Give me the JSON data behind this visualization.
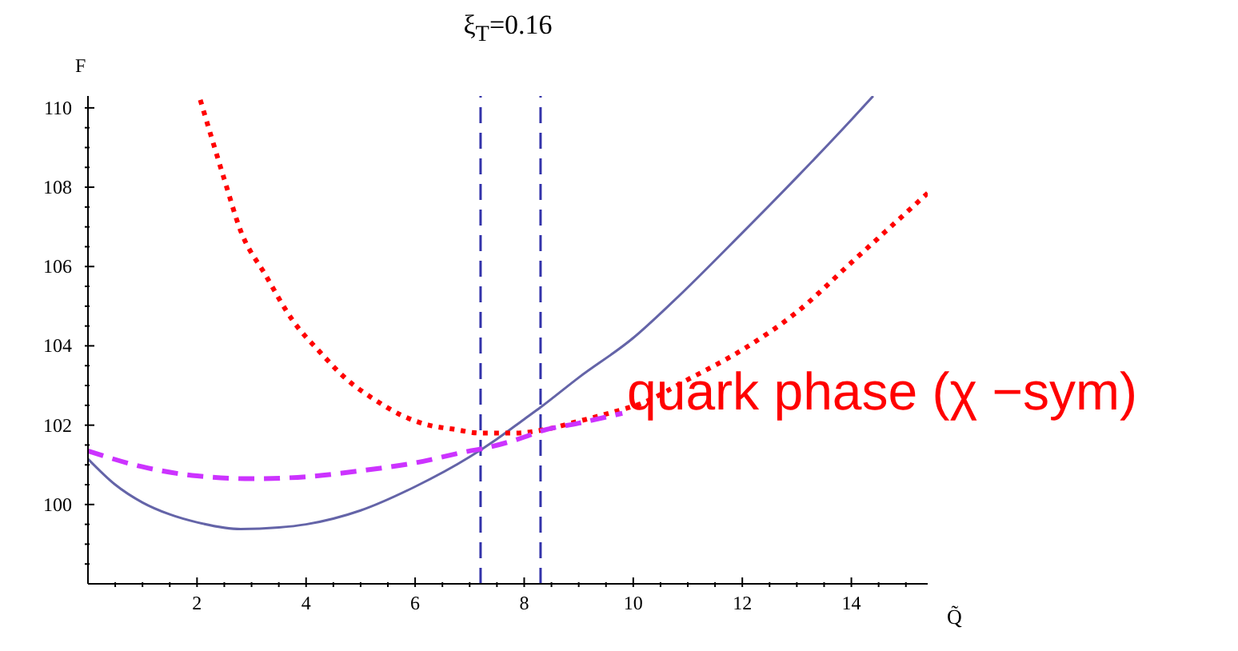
{
  "chart_data": {
    "type": "line",
    "title": "ξ$_{T}$=0.16",
    "xlabel": "Q̃",
    "ylabel": "F",
    "annotations": [
      "quark phase (χ −sym)"
    ],
    "series": [
      {
        "color": "#6464a8",
        "line_style": "solid",
        "x": [
          0,
          0.5,
          1,
          1.5,
          2,
          2.8,
          3.5,
          4,
          5,
          6,
          7,
          7.5,
          8,
          8.3,
          9,
          10,
          10.74,
          12,
          13,
          14,
          14.4
        ],
        "values": [
          101.15,
          100.5,
          100.05,
          99.75,
          99.55,
          99.38,
          99.42,
          99.5,
          99.85,
          100.45,
          101.2,
          101.65,
          102.15,
          102.45,
          103.2,
          104.2,
          105.13,
          106.85,
          108.25,
          109.7,
          110.3
        ]
      },
      {
        "color": "#ff0000",
        "line_style": "dotted",
        "x": [
          2.06,
          2.5,
          2.8,
          3.25,
          3.75,
          4.25,
          4.75,
          5.25,
          5.75,
          6.25,
          6.7,
          7.2,
          7.8,
          8.3,
          9,
          9.55,
          10.15,
          11,
          12,
          13,
          14,
          15.4
        ],
        "values": [
          110.2,
          108.2,
          106.9,
          105.8,
          104.65,
          103.85,
          103.15,
          102.65,
          102.25,
          102.0,
          101.9,
          101.8,
          101.8,
          101.87,
          102.1,
          102.3,
          102.55,
          103.15,
          103.9,
          104.85,
          106.1,
          107.85
        ]
      },
      {
        "color": "#cc33ff",
        "line_style": "dashed",
        "x": [
          0,
          1,
          2,
          3,
          4,
          5,
          6,
          7,
          7.2,
          8,
          8.3,
          9,
          9.8
        ],
        "values": [
          101.35,
          100.95,
          100.72,
          100.65,
          100.7,
          100.85,
          101.05,
          101.35,
          101.4,
          101.7,
          101.85,
          102.05,
          102.3
        ]
      }
    ],
    "marker": "none",
    "ref_lines": [
      {
        "axis": "x",
        "value": 7.2,
        "color": "#3333aa",
        "line_style": "dashed"
      },
      {
        "axis": "x",
        "value": 8.3,
        "color": "#3333aa",
        "line_style": "dashed"
      }
    ],
    "xlim": [
      0,
      15.4
    ],
    "ylim": [
      98,
      110.3
    ],
    "xticks": [
      {
        "value": 0.5,
        "label": null
      },
      {
        "value": 1,
        "label": null
      },
      {
        "value": 1.5,
        "label": null
      },
      2,
      {
        "value": 2.5,
        "label": null
      },
      {
        "value": 3,
        "label": null
      },
      {
        "value": 3.5,
        "label": null
      },
      4,
      {
        "value": 4.5,
        "label": null
      },
      {
        "value": 5,
        "label": null
      },
      {
        "value": 5.5,
        "label": null
      },
      6,
      {
        "value": 6.5,
        "label": null
      },
      {
        "value": 7,
        "label": null
      },
      {
        "value": 7.5,
        "label": null
      },
      8,
      {
        "value": 8.5,
        "label": null
      },
      {
        "value": 9,
        "label": null
      },
      {
        "value": 9.5,
        "label": null
      },
      10,
      {
        "value": 10.5,
        "label": null
      },
      {
        "value": 11,
        "label": null
      },
      {
        "value": 11.5,
        "label": null
      },
      12,
      {
        "value": 12.5,
        "label": null
      },
      {
        "value": 13,
        "label": null
      },
      {
        "value": 13.5,
        "label": null
      },
      14,
      {
        "value": 14.5,
        "label": null
      },
      {
        "value": 15,
        "label": null
      }
    ],
    "yticks": [
      {
        "value": 98.5,
        "label": null
      },
      {
        "value": 99,
        "label": null
      },
      {
        "value": 99.5,
        "label": null
      },
      100,
      {
        "value": 100.5,
        "label": null
      },
      {
        "value": 101,
        "label": null
      },
      {
        "value": 101.5,
        "label": null
      },
      102,
      {
        "value": 102.5,
        "label": null
      },
      {
        "value": 103,
        "label": null
      },
      {
        "value": 103.5,
        "label": null
      },
      104,
      {
        "value": 104.5,
        "label": null
      },
      {
        "value": 105,
        "label": null
      },
      {
        "value": 105.5,
        "label": null
      },
      106,
      {
        "value": 106.5,
        "label": null
      },
      {
        "value": 107,
        "label": null
      },
      {
        "value": 107.5,
        "label": null
      },
      108,
      {
        "value": 108.5,
        "label": null
      },
      {
        "value": 109,
        "label": null
      },
      {
        "value": 109.5,
        "label": null
      },
      110
    ],
    "grid": false,
    "legend": false
  }
}
